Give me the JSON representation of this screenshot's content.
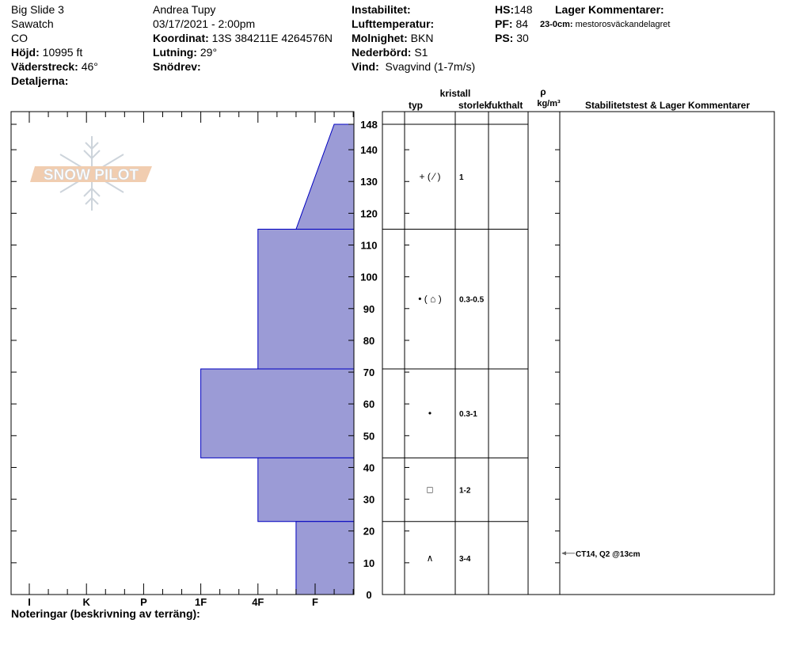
{
  "header": {
    "col1": {
      "location": "Big Slide 3",
      "range": "Sawatch",
      "state": "CO",
      "elevation_label": "Höjd:",
      "elevation": "10995 ft",
      "aspect_label": "Väderstreck:",
      "aspect": "46°",
      "details_label": "Detaljerna:"
    },
    "col2": {
      "observer": "Andrea Tupy",
      "datetime": "03/17/2021 - 2:00pm",
      "coord_label": "Koordinat:",
      "coord": "13S 384211E 4264576N",
      "slope_label": "Lutning:",
      "slope": "29°",
      "drift_label": "Snödrev:"
    },
    "col3": {
      "instability_label": "Instabilitet:",
      "airtemp_label": "Lufttemperatur:",
      "sky_label": "Molnighet:",
      "sky": "BKN",
      "precip_label": "Nederbörd:",
      "precip": "S1",
      "wind_label": "Vind:",
      "wind": "Svagvind (1-7m/s)"
    },
    "col4": {
      "hs_label": "HS:",
      "hs": "148",
      "pf_label": "PF:",
      "pf": "84",
      "ps_label": "PS:",
      "ps": "30"
    },
    "comments": {
      "title": "Lager Kommentarer:",
      "layer_label": "23-0cm:",
      "layer_text": "mestorosväckandelagret"
    }
  },
  "table_headers": {
    "crystal": "kristall",
    "type": "typ",
    "size": "storlek",
    "moisture": "fukthalt",
    "rho": "ρ",
    "density_unit": "kg/m³",
    "stability": "Stabilitetstest & Lager Kommentarer"
  },
  "notes_label": "Noteringar (beskrivning av terräng):",
  "logo_text": "SNOW PILOT",
  "colors": {
    "hardness_fill": "#9b9bd6",
    "hardness_stroke": "#0000c0",
    "logo_orange": "#f0c8a8",
    "logo_flake": "#c8d0d8"
  },
  "chart_data": {
    "type": "area",
    "ylabel": "",
    "ylim": [
      0,
      148
    ],
    "y_ticks": [
      "0",
      "10",
      "20",
      "30",
      "40",
      "50",
      "60",
      "70",
      "80",
      "90",
      "100",
      "110",
      "120",
      "130",
      "140",
      "148"
    ],
    "hardness_scale": [
      "I",
      "K",
      "P",
      "1F",
      "4F",
      "F"
    ],
    "layers": [
      {
        "top": 148,
        "bottom": 115,
        "hardness_top": "F-",
        "hardness_bottom": "F+",
        "grain": "+ ( ⁄ )",
        "size": "1"
      },
      {
        "top": 115,
        "bottom": 71,
        "hardness_top": "4F",
        "hardness_bottom": "4F",
        "grain": "• ( ⌂ )",
        "size": "0.3-0.5"
      },
      {
        "top": 71,
        "bottom": 43,
        "hardness_top": "1F",
        "hardness_bottom": "1F",
        "grain": "•",
        "size": "0.3-1"
      },
      {
        "top": 43,
        "bottom": 23,
        "hardness_top": "4F",
        "hardness_bottom": "4F",
        "grain": "□",
        "size": "1-2"
      },
      {
        "top": 23,
        "bottom": 0,
        "hardness_top": "F+",
        "hardness_bottom": "F+",
        "grain": "∧",
        "size": "3-4"
      }
    ],
    "tests": [
      {
        "depth": 13,
        "label": "CT14, Q2 @13cm"
      }
    ]
  }
}
